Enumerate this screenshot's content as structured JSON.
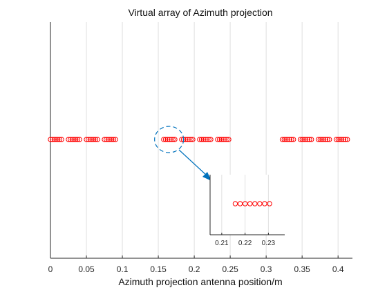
{
  "chart_data": {
    "type": "scatter",
    "title": "Virtual array of Azimuth projection",
    "xlabel": "Azimuth projection antenna position/m",
    "ylabel": "",
    "xlim": [
      0,
      0.42
    ],
    "xticks": [
      0,
      0.05,
      0.1,
      0.15,
      0.2,
      0.25,
      0.3,
      0.35,
      0.4
    ],
    "xtick_labels": [
      "0",
      "0.05",
      "0.1",
      "0.15",
      "0.2",
      "0.25",
      "0.3",
      "0.35",
      "0.4"
    ],
    "grid": "x-only",
    "series": [
      {
        "marker": "circle",
        "color": "#ff0000",
        "x": [
          0,
          0.00258,
          0.00516,
          0.00774,
          0.01032,
          0.0129,
          0.01548,
          0.025,
          0.02758,
          0.03016,
          0.03274,
          0.03532,
          0.0379,
          0.04048,
          0.05,
          0.05258,
          0.05516,
          0.05774,
          0.06032,
          0.0629,
          0.06548,
          0.075,
          0.07758,
          0.08016,
          0.08274,
          0.08532,
          0.0879,
          0.09048,
          0.1575,
          0.16008,
          0.16266,
          0.16524,
          0.16782,
          0.1704,
          0.17298,
          0.1825,
          0.18508,
          0.18766,
          0.19024,
          0.19282,
          0.1954,
          0.19798,
          0.2075,
          0.21008,
          0.21266,
          0.21524,
          0.21782,
          0.2204,
          0.22298,
          0.2325,
          0.23508,
          0.23766,
          0.24024,
          0.24282,
          0.2454,
          0.24798,
          0.3225,
          0.32508,
          0.32766,
          0.33024,
          0.33282,
          0.3354,
          0.33798,
          0.3475,
          0.35008,
          0.35266,
          0.35524,
          0.35782,
          0.3604,
          0.36298,
          0.3725,
          0.37508,
          0.37766,
          0.38024,
          0.38282,
          0.3854,
          0.38798,
          0.3975,
          0.40008,
          0.40266,
          0.40524,
          0.40782,
          0.4104,
          0.41298
        ],
        "y": 0
      }
    ],
    "highlight": {
      "shape": "dashed-ellipse",
      "color": "#0072bd",
      "x_center": 0.165
    },
    "inset": {
      "xlim": [
        0.205,
        0.237
      ],
      "xticks": [
        0.21,
        0.22,
        0.23
      ],
      "xtick_labels": [
        "0.21",
        "0.22",
        "0.23"
      ],
      "x": [
        0.2158,
        0.2179,
        0.22,
        0.2221,
        0.2242,
        0.2263,
        0.2284,
        0.2305
      ]
    }
  }
}
